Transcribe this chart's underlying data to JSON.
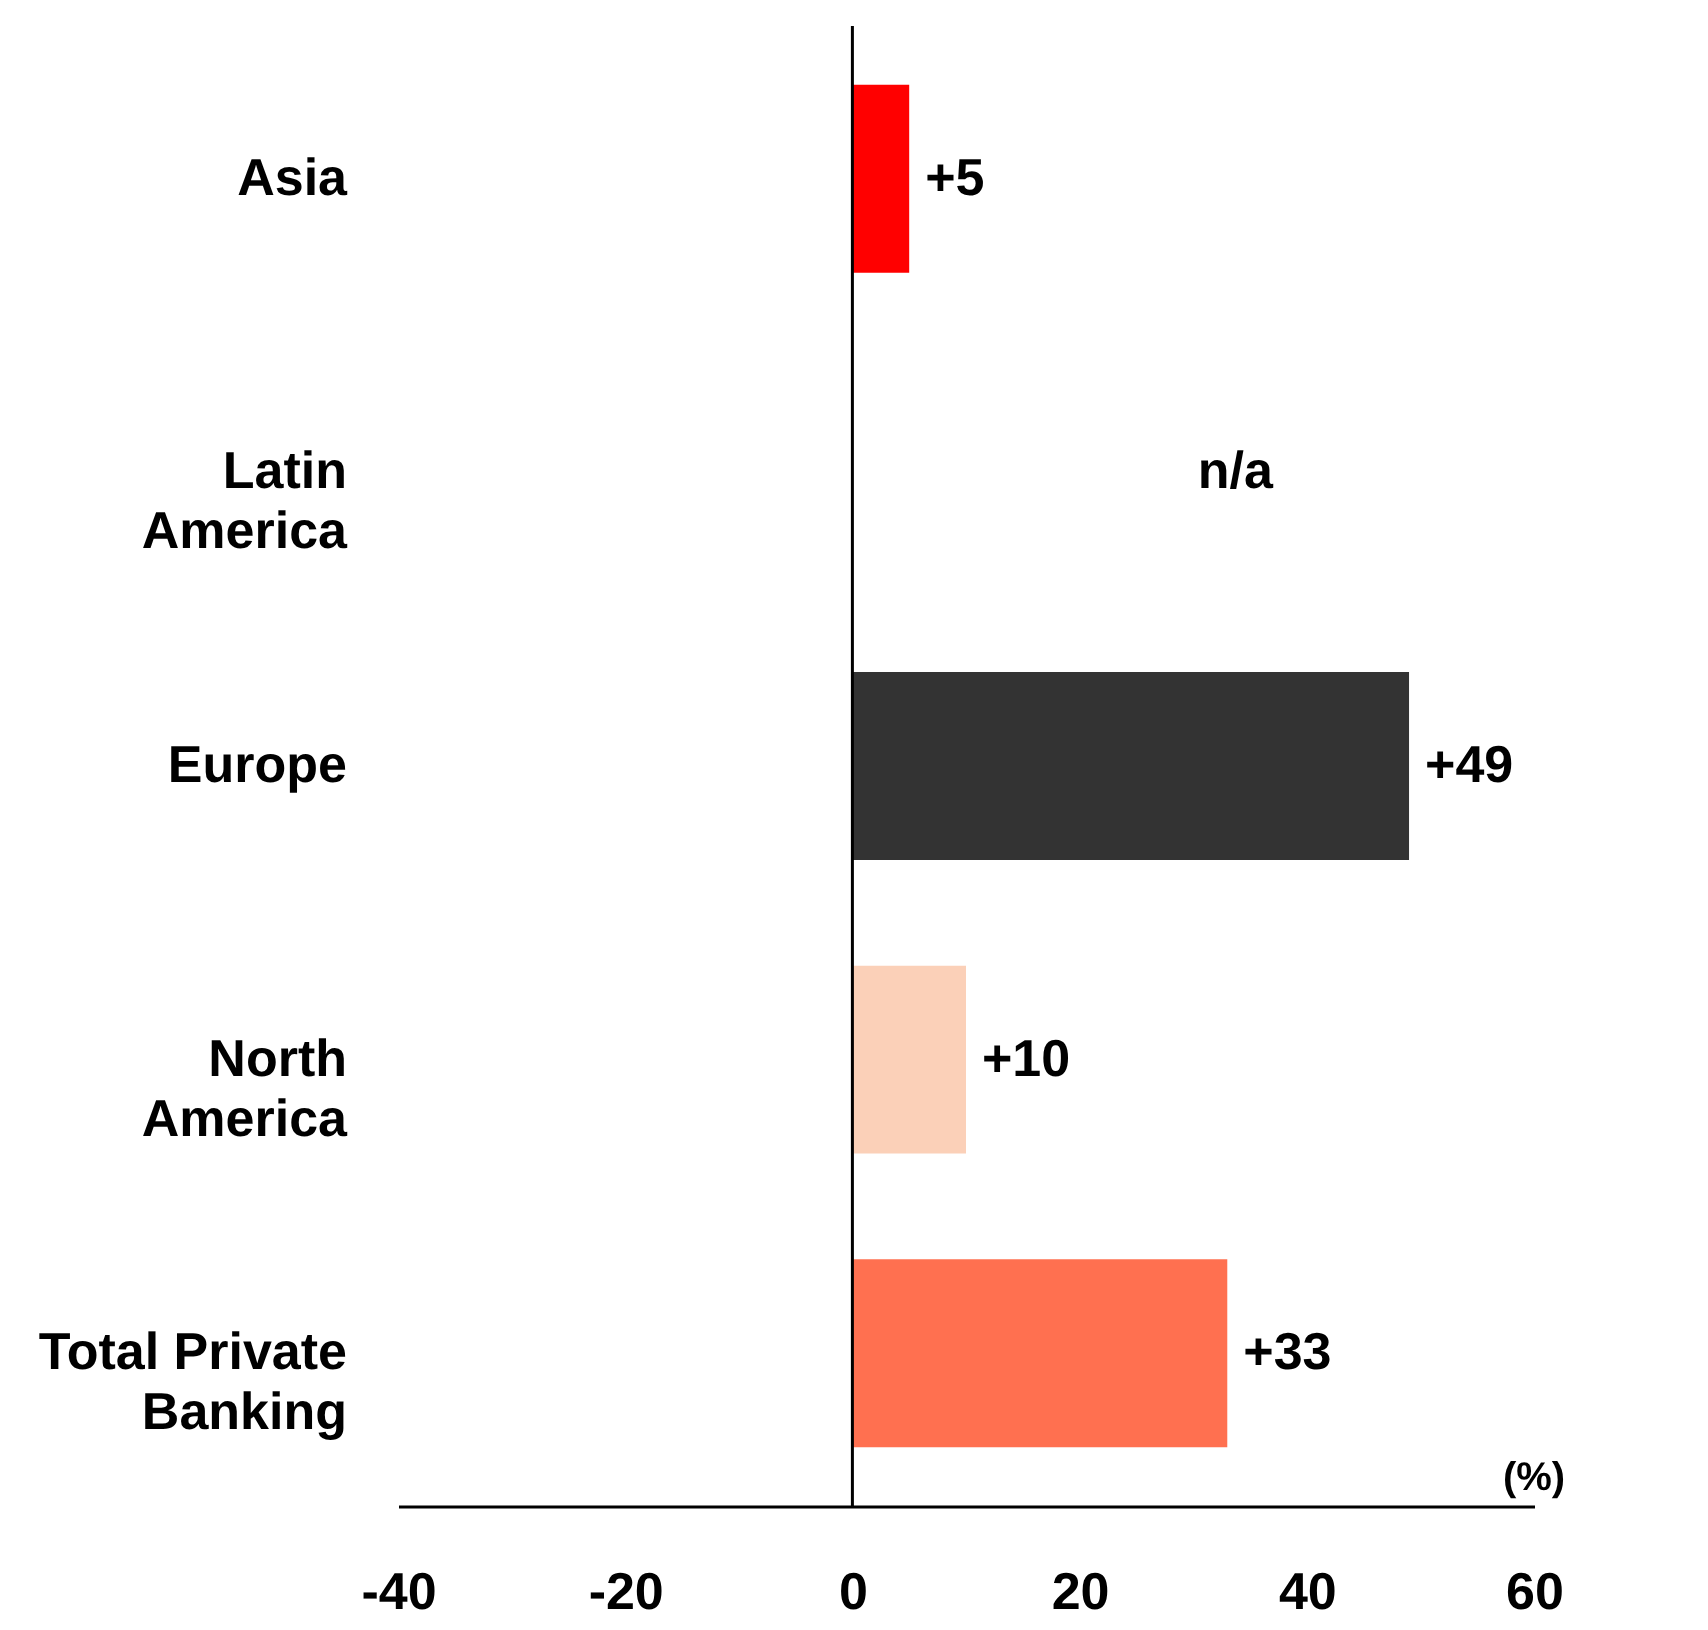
{
  "chart_data": {
    "type": "bar",
    "orientation": "horizontal",
    "xlabel": "(%)",
    "categories": [
      "Asia",
      "Latin America",
      "Europe",
      "North America",
      "Total Private Banking"
    ],
    "values": [
      5,
      null,
      49,
      10,
      33
    ],
    "colors": [
      "#ff0000",
      null,
      "#333333",
      "#fbd0b8",
      "#ff7050"
    ],
    "value_labels": [
      "+5",
      "n/a",
      "+49",
      "+10",
      "+33"
    ],
    "xlim": [
      -40,
      60
    ],
    "xticks": [
      -40,
      -20,
      0,
      20,
      40,
      60
    ],
    "ref_lines": [
      {
        "axis": "x",
        "value": 0,
        "color": "#000000"
      }
    ],
    "grid": false,
    "legend": false
  }
}
